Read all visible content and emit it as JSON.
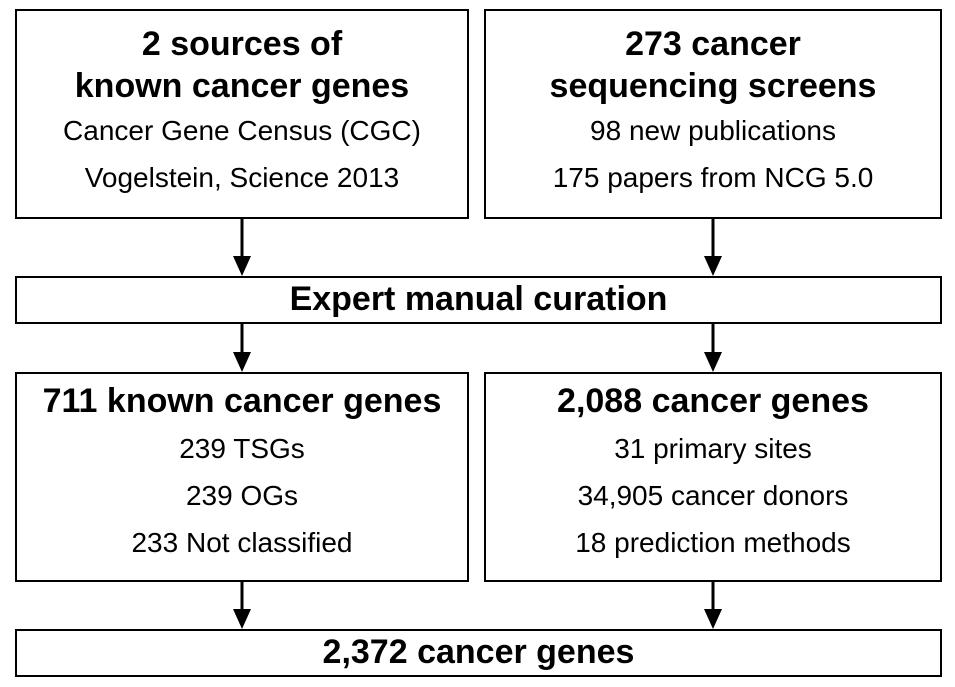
{
  "sources": {
    "title_line1": "2 sources of",
    "title_line2": "known cancer genes",
    "items": [
      "Cancer Gene Census (CGC)",
      "Vogelstein, Science 2013"
    ]
  },
  "screens": {
    "title_line1": "273 cancer",
    "title_line2": "sequencing screens",
    "items": [
      "98 new publications",
      "175 papers from NCG 5.0"
    ]
  },
  "curation": {
    "label": "Expert manual curation"
  },
  "known": {
    "title": "711 known cancer genes",
    "items": [
      "239 TSGs",
      "239 OGs",
      "233 Not classified"
    ]
  },
  "genes": {
    "title": "2,088 cancer genes",
    "items": [
      "31 primary sites",
      "34,905 cancer donors",
      "18 prediction methods"
    ]
  },
  "final": {
    "label": "2,372 cancer genes"
  }
}
